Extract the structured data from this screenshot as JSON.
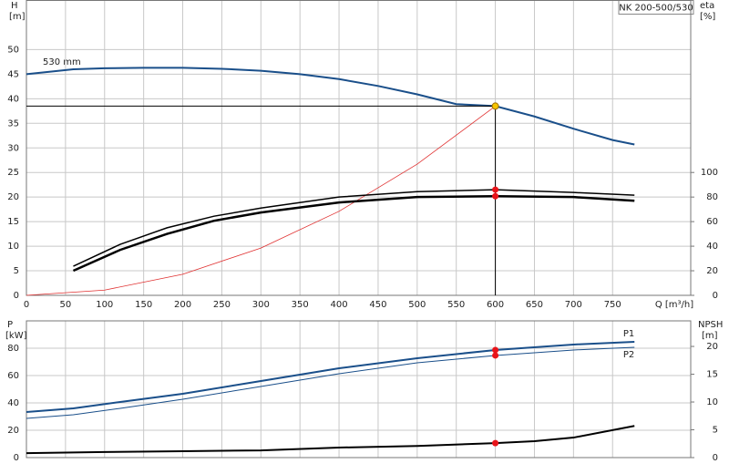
{
  "chart_data": [
    {
      "type": "line",
      "title": "NK 200-500/530",
      "annotation": "530 mm",
      "xlabel": "Q [m³/h]",
      "ylabel": "H",
      "yunit": "[m]",
      "y2label": "eta",
      "y2unit": "[%]",
      "xlim": [
        0,
        850
      ],
      "xticks": [
        0,
        50,
        100,
        150,
        200,
        250,
        300,
        350,
        400,
        450,
        500,
        550,
        600,
        650,
        700,
        750
      ],
      "ylim": [
        0,
        60
      ],
      "yticks": [
        0,
        5,
        10,
        15,
        20,
        25,
        30,
        35,
        40,
        45,
        50
      ],
      "y2lim": [
        0,
        240
      ],
      "y2ticks": [
        0,
        20,
        40,
        60,
        80,
        100
      ],
      "grid": true,
      "xtick_labels": true,
      "series": [
        {
          "color": "#1a4f8a",
          "line_width": 2,
          "axis": "y",
          "x": [
            0,
            60,
            100,
            150,
            200,
            250,
            300,
            350,
            400,
            450,
            500,
            550,
            600,
            650,
            700,
            750,
            778
          ],
          "values": [
            45,
            46,
            46.2,
            46.3,
            46.3,
            46.1,
            45.7,
            45,
            44,
            42.6,
            40.9,
            38.9,
            38.5,
            36.4,
            33.9,
            31.6,
            30.7
          ]
        },
        {
          "color": "#e03030",
          "line_width": 0.8,
          "axis": "y",
          "x": [
            0,
            100,
            200,
            300,
            400,
            500,
            600
          ],
          "values": [
            0,
            1.07,
            4.28,
            9.63,
            17.1,
            26.7,
            38.5
          ]
        },
        {
          "color": "#000000",
          "line_width": 1.5,
          "axis": "y2",
          "x": [
            60,
            120,
            180,
            240,
            300,
            400,
            500,
            600,
            700,
            778
          ],
          "values": [
            23.7,
            41.5,
            55,
            64.4,
            71,
            80,
            84.4,
            86,
            83.7,
            81.5
          ]
        },
        {
          "color": "#000000",
          "line_width": 2.5,
          "axis": "y2",
          "x": [
            60,
            120,
            180,
            240,
            300,
            400,
            500,
            600,
            700,
            778
          ],
          "values": [
            20,
            37,
            50,
            60.7,
            67.4,
            75.6,
            80,
            80.7,
            80,
            77
          ]
        }
      ],
      "points": [
        {
          "x": 600,
          "y": 38.5,
          "axis": "y",
          "color": "#f5c400",
          "guide": true
        },
        {
          "x": 600,
          "y": 86,
          "axis": "y2",
          "color": "#e8141a",
          "guide": false
        },
        {
          "x": 600,
          "y": 80.7,
          "axis": "y2",
          "color": "#e8141a",
          "guide": false
        }
      ]
    },
    {
      "type": "line",
      "ylabel": "P",
      "yunit": "[kW]",
      "y2label": "NPSH",
      "y2unit": "[m]",
      "xlim": [
        0,
        850
      ],
      "xticks": [
        0,
        50,
        100,
        150,
        200,
        250,
        300,
        350,
        400,
        450,
        500,
        550,
        600,
        650,
        700,
        750
      ],
      "ylim": [
        0,
        100
      ],
      "yticks": [
        0,
        20,
        40,
        60,
        80
      ],
      "y2lim": [
        0,
        24.6
      ],
      "y2ticks": [
        0,
        5,
        10,
        15,
        20
      ],
      "grid": true,
      "xtick_labels": false,
      "series": [
        {
          "name": "P1",
          "color": "#1a4f8a",
          "line_width": 2,
          "axis": "y",
          "x": [
            0,
            60,
            120,
            200,
            300,
            400,
            500,
            600,
            700,
            778
          ],
          "values": [
            33.3,
            36,
            40.7,
            46.7,
            56,
            65.3,
            72.7,
            78.7,
            82.7,
            84.7
          ]
        },
        {
          "name": "P2",
          "color": "#1a4f8a",
          "line_width": 1,
          "axis": "y",
          "x": [
            0,
            60,
            120,
            200,
            300,
            400,
            500,
            600,
            700,
            778
          ],
          "values": [
            28.7,
            31.3,
            36,
            42.7,
            52,
            61.3,
            69.3,
            74.7,
            78.7,
            80.7
          ]
        },
        {
          "color": "#000000",
          "line_width": 2,
          "axis": "y2",
          "x": [
            0,
            100,
            200,
            300,
            400,
            500,
            600,
            650,
            700,
            778
          ],
          "values": [
            0.8,
            1,
            1.15,
            1.3,
            1.8,
            2.1,
            2.6,
            2.95,
            3.6,
            5.7
          ]
        }
      ],
      "points": [
        {
          "x": 600,
          "y": 78.7,
          "axis": "y",
          "color": "#e8141a",
          "guide": false
        },
        {
          "x": 600,
          "y": 74.7,
          "axis": "y",
          "color": "#e8141a",
          "guide": false
        },
        {
          "x": 600,
          "y": 2.6,
          "axis": "y2",
          "color": "#e8141a",
          "guide": false
        }
      ]
    }
  ]
}
